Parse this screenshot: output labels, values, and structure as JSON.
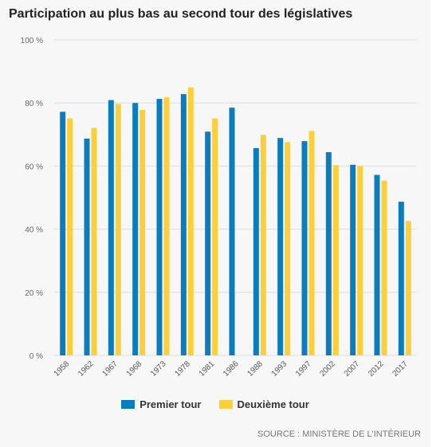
{
  "chart_data": {
    "type": "bar",
    "title": "Participation au plus bas au second tour des législatives",
    "xlabel": "",
    "ylabel": "",
    "ylim": [
      0,
      100
    ],
    "yticks": [
      "0 %",
      "20 %",
      "40 %",
      "60 %",
      "80 %",
      "100 %"
    ],
    "ytick_values": [
      0,
      20,
      40,
      60,
      80,
      100
    ],
    "grid": true,
    "legend_position": "bottom",
    "categories": [
      "1958",
      "1962",
      "1967",
      "1968",
      "1973",
      "1978",
      "1981",
      "1986",
      "1988",
      "1993",
      "1997",
      "2002",
      "2007",
      "2012",
      "2017"
    ],
    "series": [
      {
        "name": "Premier tour",
        "color": "#0a7dbf",
        "values": [
          77.2,
          68.7,
          80.9,
          80.0,
          81.3,
          82.8,
          70.9,
          78.5,
          65.7,
          68.9,
          67.9,
          64.4,
          60.4,
          57.2,
          48.7
        ]
      },
      {
        "name": "Deuxième tour",
        "color": "#fccf3b",
        "values": [
          75.1,
          72.1,
          79.7,
          77.8,
          81.8,
          84.9,
          75.1,
          null,
          69.9,
          67.6,
          71.1,
          60.3,
          60.0,
          55.4,
          42.6
        ]
      }
    ],
    "source": "SOURCE : MINISTÈRE DE L'INTÉRIEUR"
  }
}
